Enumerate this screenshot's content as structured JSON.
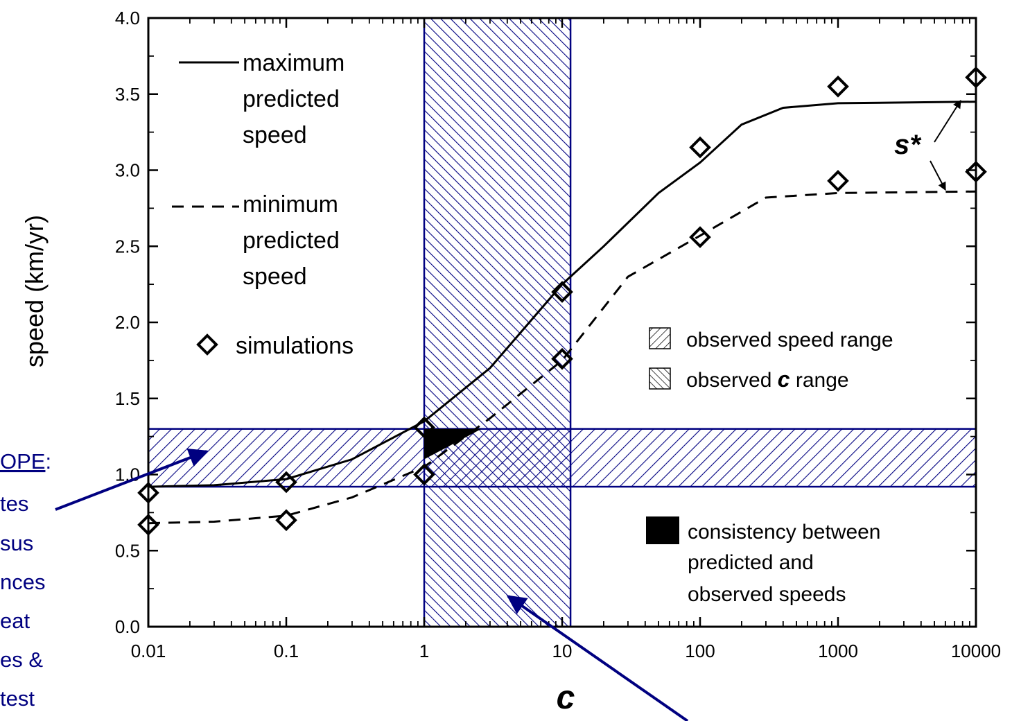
{
  "chart_data": {
    "type": "line",
    "x_scale": "log",
    "xlim": [
      0.01,
      10000
    ],
    "ylim": [
      0.0,
      4.0
    ],
    "xlabel": "c",
    "ylabel": "speed (km/yr)",
    "x_tick_labels": [
      "0.01",
      "0.1",
      "1",
      "10",
      "100",
      "1000",
      "10000"
    ],
    "x_tick_values": [
      0.01,
      0.1,
      1,
      10,
      100,
      1000,
      10000
    ],
    "y_tick_labels": [
      "0.0",
      "0.5",
      "1.0",
      "1.5",
      "2.0",
      "2.5",
      "3.0",
      "3.5",
      "4.0"
    ],
    "y_tick_values": [
      0,
      0.5,
      1.0,
      1.5,
      2.0,
      2.5,
      3.0,
      3.5,
      4.0
    ],
    "series": [
      {
        "name": "maximum predicted speed",
        "style": "solid",
        "x": [
          0.01,
          0.03,
          0.1,
          0.3,
          1,
          3,
          10,
          20,
          50,
          100,
          200,
          400,
          1000,
          10000
        ],
        "y": [
          0.92,
          0.93,
          0.97,
          1.1,
          1.35,
          1.7,
          2.25,
          2.5,
          2.85,
          3.05,
          3.3,
          3.41,
          3.44,
          3.45
        ]
      },
      {
        "name": "minimum predicted speed",
        "style": "dashed",
        "x": [
          0.01,
          0.03,
          0.1,
          0.3,
          1,
          3,
          10,
          30,
          100,
          300,
          1000,
          10000
        ],
        "y": [
          0.68,
          0.69,
          0.73,
          0.85,
          1.05,
          1.37,
          1.75,
          2.3,
          2.57,
          2.82,
          2.85,
          2.86
        ]
      },
      {
        "name": "simulations",
        "style": "markers",
        "x": [
          0.01,
          0.01,
          0.1,
          0.1,
          1,
          1,
          10,
          10,
          100,
          100,
          1000,
          1000,
          10000,
          10000
        ],
        "y": [
          0.88,
          0.67,
          0.95,
          0.7,
          1.31,
          1.0,
          2.2,
          1.76,
          3.15,
          2.56,
          3.55,
          2.93,
          3.61,
          2.99
        ]
      }
    ],
    "observed_speed_range": [
      0.92,
      1.3
    ],
    "observed_c_range": [
      1,
      11.5
    ],
    "consistency_region": {
      "x": [
        1,
        2.6,
        1.0
      ],
      "y": [
        1.3,
        1.3,
        1.1
      ]
    },
    "annotation_s_star": "s*",
    "colors": {
      "band": "#000080",
      "lines": "#000000"
    }
  },
  "legend_left": {
    "max_label_lines": [
      "maximum",
      "predicted",
      "speed"
    ],
    "min_label_lines": [
      "minimum",
      "predicted",
      "speed"
    ],
    "sim_label": "simulations"
  },
  "legend_right": {
    "speed_range_label": "observed speed range",
    "c_range_prefix": "observed ",
    "c_range_symbol": "c",
    "c_range_suffix": " range",
    "consistency_lines": [
      "consistency between",
      "predicted and",
      "observed speeds"
    ]
  },
  "side_text": {
    "heading": "OPE",
    "colon": ":",
    "lines": [
      "tes",
      "sus",
      "nces",
      "eat",
      "es &",
      "test"
    ]
  }
}
